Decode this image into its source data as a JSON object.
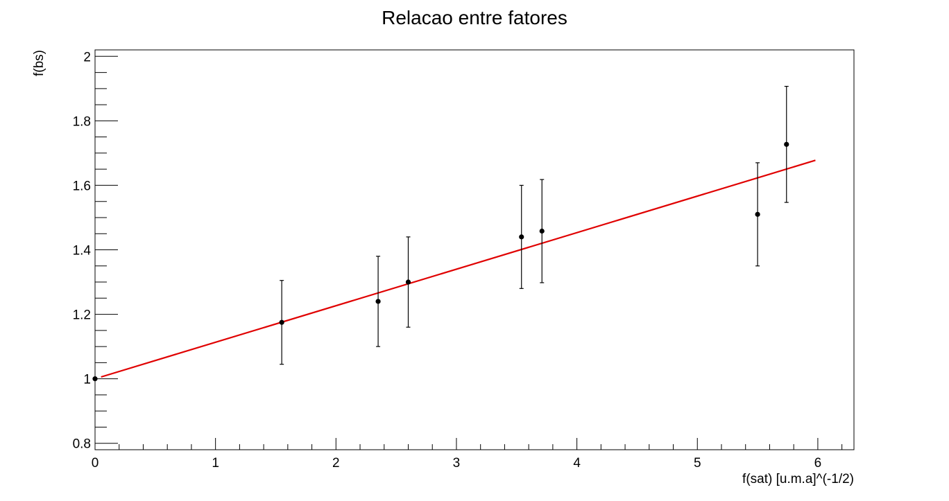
{
  "chart_data": {
    "type": "scatter",
    "title": "Relacao entre fatores",
    "xlabel": "f(sat) [u.m.a]^(-1/2)",
    "ylabel": "f(bs)",
    "xlim": [
      0,
      6.3
    ],
    "ylim": [
      0.78,
      2.02
    ],
    "x_ticks": [
      0,
      1,
      2,
      3,
      4,
      5,
      6
    ],
    "y_ticks": [
      0.8,
      1.0,
      1.2,
      1.4,
      1.6,
      1.8,
      2.0
    ],
    "x_tick_labels": [
      "0",
      "1",
      "2",
      "3",
      "4",
      "5",
      "6"
    ],
    "y_tick_labels": [
      "0.8",
      "1",
      "1.2",
      "1.4",
      "1.6",
      "1.8",
      "2"
    ],
    "grid": false,
    "series": [
      {
        "type": "scatter_errorbar",
        "color": "#000000",
        "points": [
          {
            "x": 0.0,
            "y": 1.0,
            "yerr": 0.0
          },
          {
            "x": 1.55,
            "y": 1.175,
            "yerr": 0.13
          },
          {
            "x": 2.35,
            "y": 1.24,
            "yerr": 0.14
          },
          {
            "x": 2.6,
            "y": 1.3,
            "yerr": 0.14
          },
          {
            "x": 3.54,
            "y": 1.44,
            "yerr": 0.16
          },
          {
            "x": 3.71,
            "y": 1.458,
            "yerr": 0.16
          },
          {
            "x": 5.5,
            "y": 1.51,
            "yerr": 0.16
          },
          {
            "x": 5.74,
            "y": 1.727,
            "yerr": 0.18
          }
        ]
      },
      {
        "type": "fit_line",
        "color": "#e00000",
        "x_range": [
          0.05,
          5.98
        ],
        "intercept": 1.0,
        "slope": 0.1133
      }
    ]
  }
}
